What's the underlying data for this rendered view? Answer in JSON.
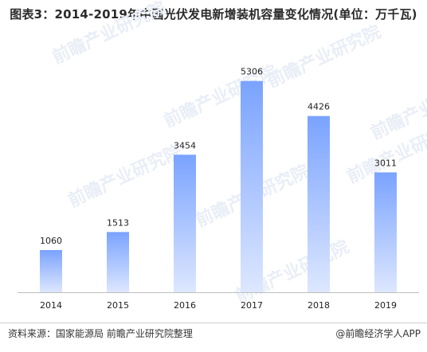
{
  "title": {
    "prefix": "图表3：",
    "text": "2014-2019年中国光伏发电新增装机容量变化情况(单位：万千瓦)"
  },
  "chart_data": {
    "type": "bar",
    "categories": [
      "2014",
      "2015",
      "2016",
      "2017",
      "2018",
      "2019"
    ],
    "values": [
      1060,
      1513,
      3454,
      5306,
      4426,
      3011
    ],
    "ylim": [
      0,
      5600
    ],
    "grid": false,
    "legend": "none",
    "colors": {
      "bar_top": "#7aa3ff",
      "bar_bottom": "#dde7ff",
      "axis": "#bfbfbf",
      "label": "#222222"
    }
  },
  "footer": {
    "source": "资料来源：国家能源局 前瞻产业研究院整理",
    "brand": "@前瞻经济学人APP"
  },
  "watermark": {
    "text": "前瞻产业研究院"
  }
}
